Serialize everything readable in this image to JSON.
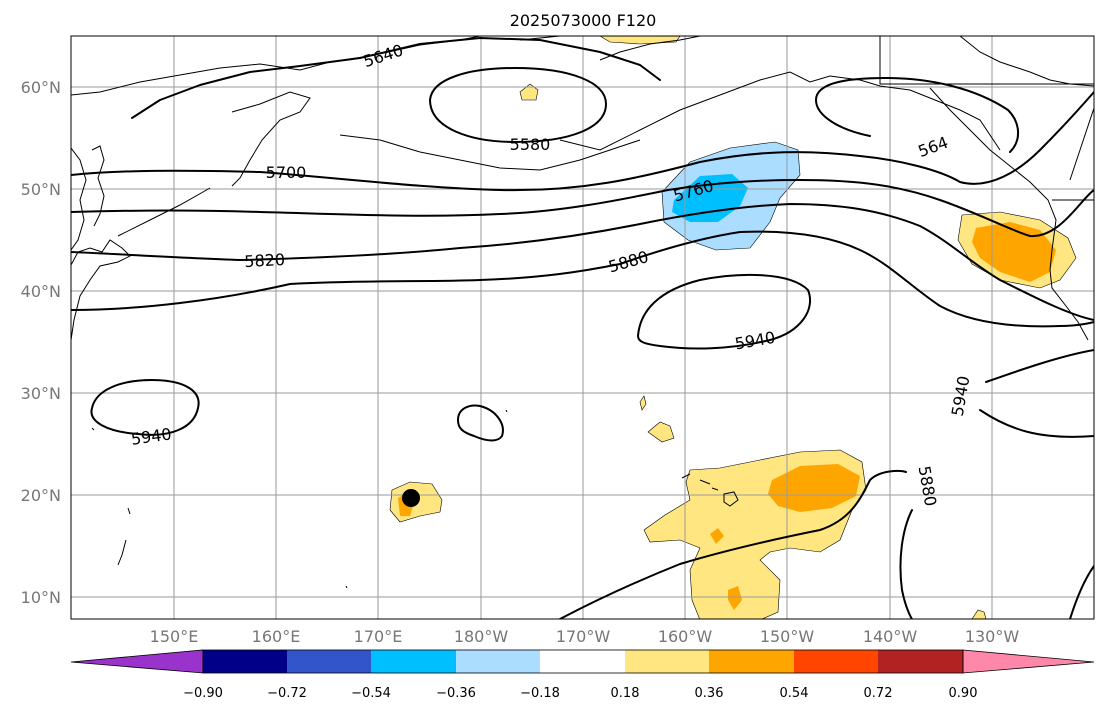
{
  "title": "2025073000 F120",
  "lat_labels": [
    "60°N",
    "50°N",
    "40°N",
    "30°N",
    "20°N",
    "10°N"
  ],
  "lon_labels": [
    "150°E",
    "160°E",
    "170°E",
    "180°W",
    "170°W",
    "160°W",
    "150°W",
    "140°W",
    "130°W"
  ],
  "contour_labels": [
    "5640",
    "5580",
    "5700",
    "5760",
    "5820",
    "5880",
    "5940",
    "5940",
    "5940",
    "5880",
    "564"
  ],
  "colorbar": {
    "tick_labels": [
      "−0.90",
      "−0.72",
      "−0.54",
      "−0.36",
      "−0.18",
      "0.18",
      "0.36",
      "0.54",
      "0.72",
      "0.90"
    ],
    "colors": [
      "#9933cc",
      "#000088",
      "#3355cc",
      "#00bfff",
      "#aaddff",
      "#ffffff",
      "#ffe680",
      "#ffa500",
      "#ff4500",
      "#b22222",
      "#ff88aa"
    ]
  },
  "colors": {
    "light_yellow": "#ffe680",
    "orange": "#ffa500",
    "light_blue": "#aaddff",
    "deep_sky_blue": "#00bfff"
  }
}
